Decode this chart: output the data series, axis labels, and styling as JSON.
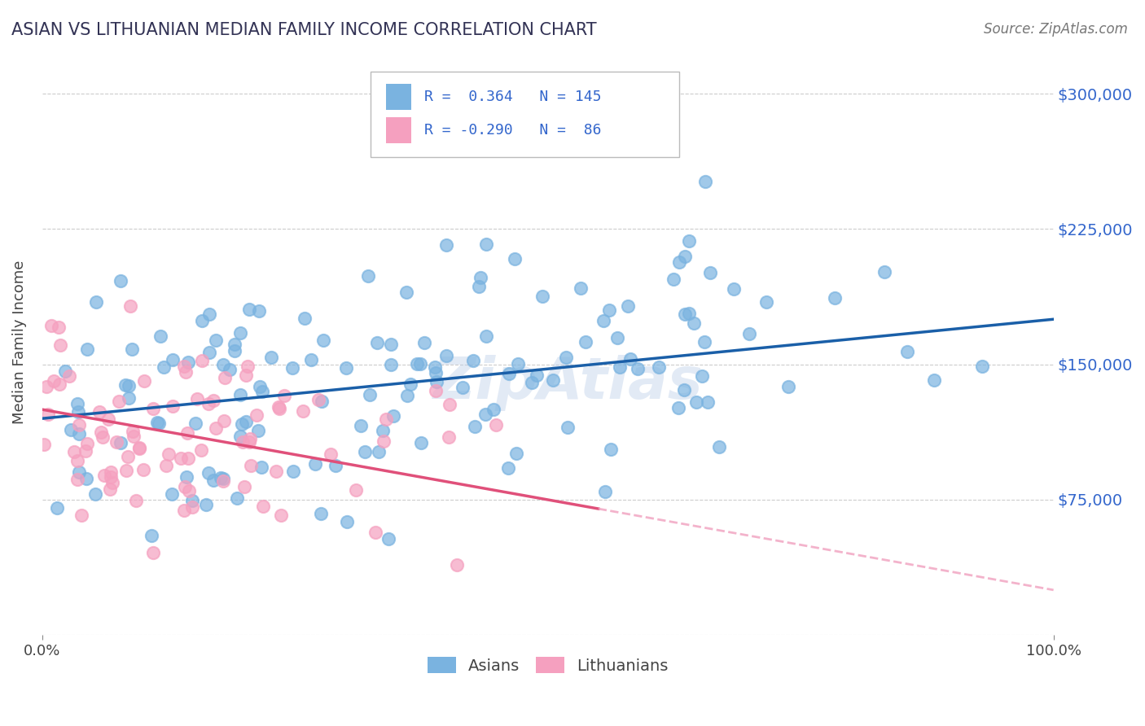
{
  "title": "ASIAN VS LITHUANIAN MEDIAN FAMILY INCOME CORRELATION CHART",
  "source": "Source: ZipAtlas.com",
  "ylabel": "Median Family Income",
  "xlabel": "",
  "xlim": [
    0.0,
    100.0
  ],
  "ylim": [
    0,
    325000
  ],
  "yticks": [
    0,
    75000,
    150000,
    225000,
    300000
  ],
  "ytick_labels": [
    "",
    "$75,000",
    "$150,000",
    "$225,000",
    "$300,000"
  ],
  "blue_color": "#7ab3e0",
  "blue_edge": "#7ab3e0",
  "pink_color": "#f5a0bf",
  "pink_edge": "#f5a0bf",
  "blue_line_color": "#1a5fa8",
  "pink_line_color": "#e0507a",
  "pink_dash_color": "#f0a0bf",
  "title_color": "#333355",
  "axis_label_color": "#555555",
  "tick_label_color": "#3366cc",
  "grid_color": "#cccccc",
  "blue_R": 0.364,
  "blue_N": 145,
  "pink_R": -0.29,
  "pink_N": 86,
  "blue_line_x0": 0,
  "blue_line_x1": 100,
  "blue_line_y0": 120000,
  "blue_line_y1": 175000,
  "pink_line_x0": 0,
  "pink_line_x1": 100,
  "pink_line_y0": 125000,
  "pink_line_y1": 25000,
  "pink_solid_end": 55,
  "watermark": "ZipAtlas",
  "background_color": "#ffffff"
}
